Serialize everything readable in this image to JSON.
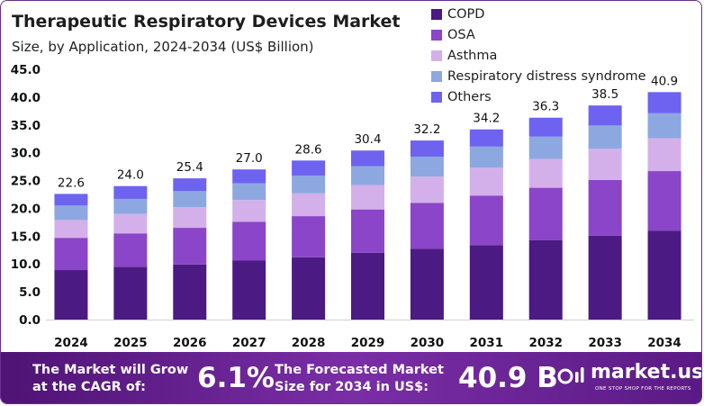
{
  "header": {
    "title": "Therapeutic Respiratory Devices Market",
    "subtitle": "Size, by Application, 2024-2034 (US$ Billion)"
  },
  "legend": {
    "items": [
      {
        "label": "COPD",
        "color": "#4b1a82"
      },
      {
        "label": "OSA",
        "color": "#8a45c8"
      },
      {
        "label": "Asthma",
        "color": "#d4b0eb"
      },
      {
        "label": "Respiratory distress syndrome",
        "color": "#8da8e0"
      },
      {
        "label": "Others",
        "color": "#6d63f0"
      }
    ]
  },
  "chart_data": {
    "type": "bar",
    "stacked": true,
    "title": "Therapeutic Respiratory Devices Market",
    "subtitle": "Size, by Application, 2024-2034 (US$ Billion)",
    "xlabel": "",
    "ylabel": "",
    "ylim": [
      0,
      45
    ],
    "yticks": [
      "0.0",
      "5.0",
      "10.0",
      "15.0",
      "20.0",
      "25.0",
      "30.0",
      "35.0",
      "40.0",
      "45.0"
    ],
    "categories": [
      "2024",
      "2025",
      "2026",
      "2027",
      "2028",
      "2029",
      "2030",
      "2031",
      "2032",
      "2033",
      "2034"
    ],
    "totals": [
      "22.6",
      "24.0",
      "25.4",
      "27.0",
      "28.6",
      "30.4",
      "32.2",
      "34.2",
      "36.3",
      "38.5",
      "40.9"
    ],
    "series": [
      {
        "name": "COPD",
        "color": "#4b1a82",
        "values": [
          8.9,
          9.5,
          9.9,
          10.6,
          11.2,
          12.0,
          12.7,
          13.4,
          14.3,
          15.1,
          16.0
        ]
      },
      {
        "name": "OSA",
        "color": "#8a45c8",
        "values": [
          5.8,
          6.0,
          6.6,
          7.0,
          7.4,
          7.8,
          8.3,
          8.9,
          9.4,
          10.0,
          10.7
        ]
      },
      {
        "name": "Asthma",
        "color": "#d4b0eb",
        "values": [
          3.2,
          3.5,
          3.7,
          3.9,
          4.1,
          4.4,
          4.7,
          5.0,
          5.2,
          5.6,
          5.9
        ]
      },
      {
        "name": "Respiratory distress syndrome",
        "color": "#8da8e0",
        "values": [
          2.6,
          2.7,
          2.9,
          3.0,
          3.2,
          3.4,
          3.6,
          3.8,
          4.0,
          4.2,
          4.5
        ]
      },
      {
        "name": "Others",
        "color": "#6d63f0",
        "values": [
          2.1,
          2.3,
          2.3,
          2.5,
          2.7,
          2.8,
          2.9,
          3.1,
          3.4,
          3.6,
          3.8
        ]
      }
    ]
  },
  "footer": {
    "cagr_text_line1": "The Market will Grow",
    "cagr_text_line2": "at the CAGR of:",
    "cagr_value": "6.1%",
    "forecast_text_line1": "The Forecasted Market",
    "forecast_text_line2": "Size for 2034 in US$:",
    "forecast_value": "40.9 B",
    "brand_name": "market.us",
    "brand_tagline": "ONE STOP SHOP FOR THE REPORTS",
    "brand_icon": "market-us-logo-icon"
  }
}
